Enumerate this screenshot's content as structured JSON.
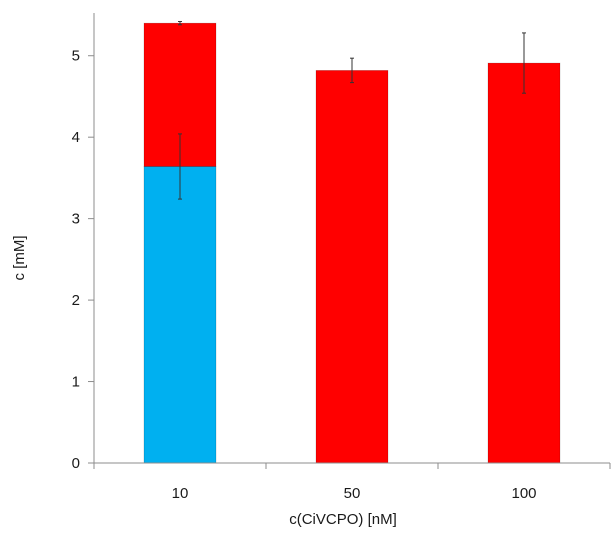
{
  "chart_data": {
    "type": "bar",
    "stacked": true,
    "title": "",
    "xlabel": "c(CiVCPO) [nM]",
    "ylabel": "c [mM]",
    "ylim": [
      0,
      5.5
    ],
    "yticks": [
      "0",
      "1",
      "2",
      "3",
      "4",
      "5"
    ],
    "grid": false,
    "legend": "none",
    "categories": [
      "10",
      "50",
      "100"
    ],
    "series": [
      {
        "color": "#00b0f0",
        "values": [
          3.64,
          0,
          0
        ],
        "error": [
          0.4,
          null,
          null
        ]
      },
      {
        "color": "#ff0000",
        "values": [
          1.76,
          4.82,
          4.91
        ],
        "error": [
          0.02,
          0.15,
          0.37
        ]
      }
    ]
  }
}
